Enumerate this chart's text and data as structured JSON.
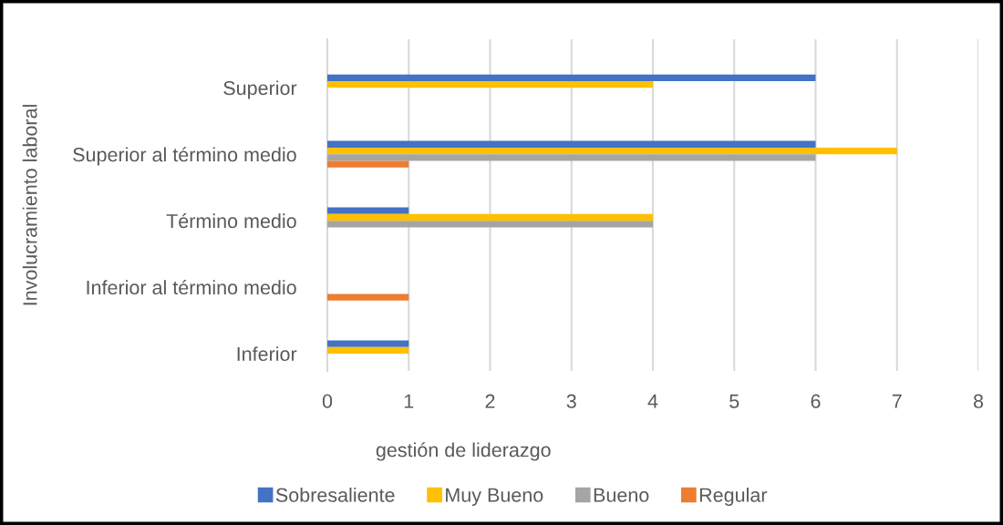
{
  "chart_data": {
    "type": "bar",
    "orientation": "horizontal",
    "xlabel": "gestión de liderazgo",
    "ylabel": "Involucramiento laboral",
    "categories": [
      "Superior",
      "Superior al término medio",
      "Término medio",
      "Inferior al término medio",
      "Inferior"
    ],
    "series": [
      {
        "name": "Sobresaliente",
        "color": "#4472c4",
        "values": [
          6,
          6,
          1,
          null,
          1
        ]
      },
      {
        "name": "Muy Bueno",
        "color": "#ffc000",
        "values": [
          4,
          7,
          4,
          null,
          1
        ]
      },
      {
        "name": "Bueno",
        "color": "#a5a5a5",
        "values": [
          null,
          6,
          4,
          null,
          null
        ]
      },
      {
        "name": "Regular",
        "color": "#ed7d31",
        "values": [
          null,
          1,
          null,
          1,
          null
        ]
      }
    ],
    "xlim": [
      0,
      8
    ],
    "xticks": [
      0,
      1,
      2,
      3,
      4,
      5,
      6,
      7,
      8
    ],
    "grid": "x",
    "legend": "bottom"
  }
}
